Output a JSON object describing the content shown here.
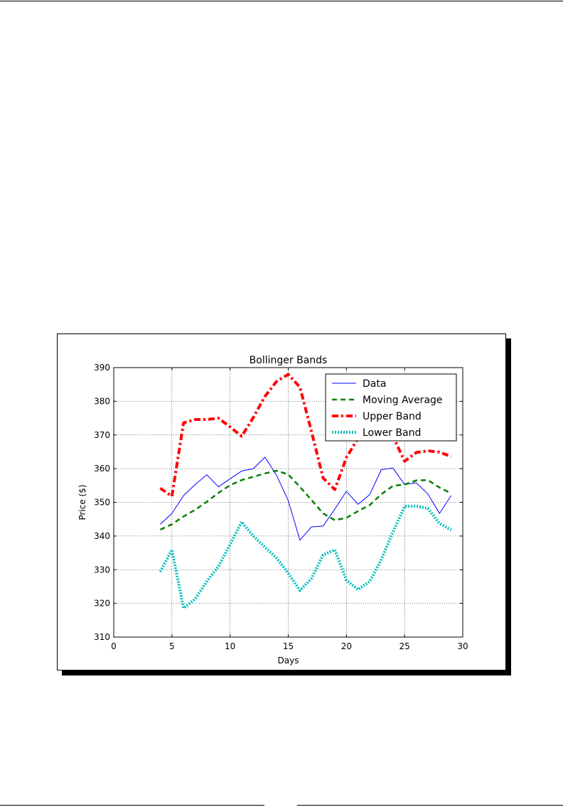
{
  "chart_data": {
    "type": "line",
    "title": "Bollinger Bands",
    "xlabel": "Days",
    "ylabel": "Price ($)",
    "xlim": [
      0,
      30
    ],
    "ylim": [
      310,
      390
    ],
    "xticks": [
      0,
      5,
      10,
      15,
      20,
      25,
      30
    ],
    "yticks": [
      310,
      320,
      330,
      340,
      350,
      360,
      370,
      380,
      390
    ],
    "grid": true,
    "legend_position": "top-right",
    "x": [
      4,
      5,
      6,
      7,
      8,
      9,
      10,
      11,
      12,
      13,
      14,
      15,
      16,
      17,
      18,
      19,
      20,
      21,
      22,
      23,
      24,
      25,
      26,
      27,
      28,
      29
    ],
    "series": [
      {
        "name": "Data",
        "color": "#0000ff",
        "style": "solid",
        "values": [
          343.5,
          346.7,
          352.0,
          355.3,
          358.2,
          354.6,
          357.0,
          359.3,
          360.0,
          363.4,
          358.0,
          350.5,
          338.8,
          342.7,
          343.0,
          348.0,
          353.3,
          349.4,
          352.3,
          359.7,
          360.2,
          355.3,
          355.8,
          352.5,
          346.7,
          352.0
        ]
      },
      {
        "name": "Moving Average",
        "color": "#008000",
        "style": "dashed",
        "values": [
          341.9,
          343.5,
          345.8,
          347.8,
          350.2,
          352.8,
          355.1,
          356.6,
          357.6,
          358.6,
          359.4,
          358.3,
          354.6,
          350.7,
          346.7,
          344.7,
          345.4,
          347.4,
          349.2,
          352.4,
          354.9,
          355.3,
          356.5,
          356.6,
          354.4,
          352.7
        ]
      },
      {
        "name": "Upper Band",
        "color": "#ff0000",
        "style": "dashdot",
        "values": [
          354.2,
          351.8,
          373.6,
          374.6,
          374.6,
          375.0,
          372.4,
          369.6,
          375.2,
          381.5,
          385.9,
          388.0,
          384.2,
          371.0,
          357.2,
          353.8,
          363.3,
          369.0,
          372.0,
          372.1,
          369.6,
          362.2,
          364.8,
          365.3,
          364.9,
          363.6
        ]
      },
      {
        "name": "Lower Band",
        "color": "#00bfbf",
        "style": "dotted",
        "values": [
          329.4,
          335.9,
          318.6,
          321.3,
          326.5,
          331.0,
          337.5,
          344.2,
          340.0,
          336.7,
          333.4,
          329.0,
          323.8,
          327.4,
          334.4,
          335.9,
          326.9,
          324.1,
          326.5,
          333.0,
          341.2,
          348.8,
          348.9,
          348.2,
          343.7,
          341.8
        ]
      }
    ]
  }
}
